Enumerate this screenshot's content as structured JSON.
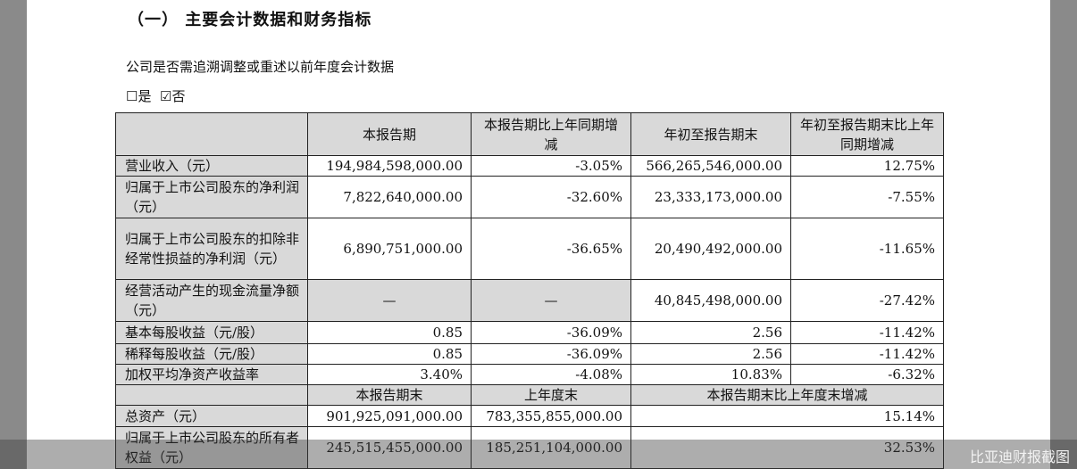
{
  "section_title": "（一）  主要会计数据和财务指标",
  "question": "公司是否需追溯调整或重述以前年度会计数据",
  "options": {
    "yes": "☐是",
    "no": "☑否"
  },
  "header": [
    "",
    "本报告期",
    "本报告期比上年同期增减",
    "年初至报告期末",
    "年初至报告期末比上年同期增减"
  ],
  "rows": [
    [
      "营业收入（元）",
      "194,984,598,000.00",
      "-3.05%",
      "566,265,546,000.00",
      "12.75%"
    ],
    [
      "归属于上市公司股东的净利润（元）",
      "7,822,640,000.00",
      "-32.60%",
      "23,333,173,000.00",
      "-7.55%"
    ],
    [
      "归属于上市公司股东的扣除非经常性损益的净利润（元）",
      "6,890,751,000.00",
      "-36.65%",
      "20,490,492,000.00",
      "-11.65%"
    ],
    [
      "经营活动产生的现金流量净额（元）",
      "—",
      "—",
      "40,845,498,000.00",
      "-27.42%"
    ],
    [
      "基本每股收益（元/股）",
      "0.85",
      "-36.09%",
      "2.56",
      "-11.42%"
    ],
    [
      "稀释每股收益（元/股）",
      "0.85",
      "-36.09%",
      "2.56",
      "-11.42%"
    ],
    [
      "加权平均净资产收益率",
      "3.40%",
      "-4.08%",
      "10.83%",
      "-6.32%"
    ]
  ],
  "subheader": [
    "",
    "本报告期末",
    "上年度末",
    "本报告期末比上年度末增减"
  ],
  "rows2": [
    [
      "总资产（元）",
      "901,925,091,000.00",
      "783,355,855,000.00",
      "15.14%"
    ],
    [
      "归属于上市公司股东的所有者权益（元）",
      "245,515,455,000.00",
      "185,251,104,000.00",
      "32.53%"
    ]
  ],
  "watermark": "比亚迪财报截图"
}
